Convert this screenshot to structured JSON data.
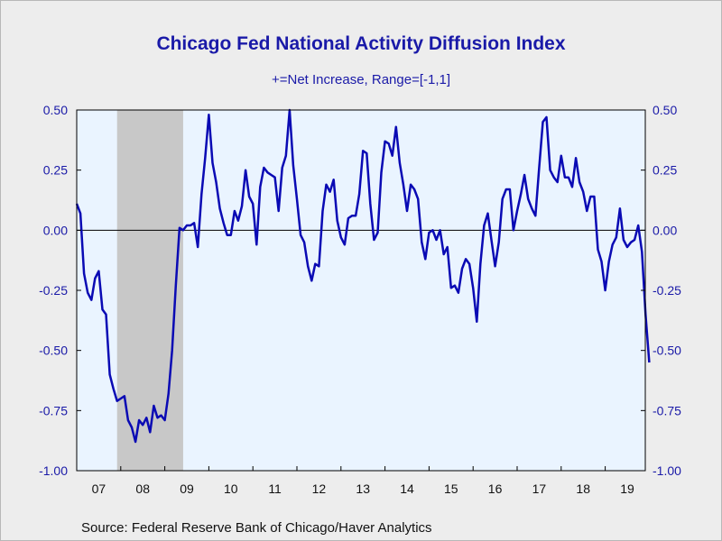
{
  "chart_data": {
    "type": "line",
    "title": "Chicago Fed National Activity Diffusion Index",
    "subtitle": "+=Net Increase, Range=[-1,1]",
    "source": "Source:  Federal Reserve Bank of Chicago/Haver Analytics",
    "ylim": [
      -1.0,
      0.5
    ],
    "y_ticks": [
      "0.50",
      "0.25",
      "0.00",
      "-0.25",
      "-0.50",
      "-0.75",
      "-1.00"
    ],
    "x_ticks": [
      "07",
      "08",
      "09",
      "10",
      "11",
      "12",
      "13",
      "14",
      "15",
      "16",
      "17",
      "18",
      "19"
    ],
    "x_start": "2007-01",
    "grid": false,
    "legend": "none",
    "zero_line": true,
    "recession_shading": {
      "start": "2007-12",
      "end": "2009-06"
    },
    "colors": {
      "line": "#0a0ab4",
      "plot_background": "#eaf4ff",
      "recession": "#c8c8c8",
      "text": "#1a1aa8"
    },
    "series": [
      {
        "values": [
          0.11,
          0.07,
          -0.18,
          -0.26,
          -0.29,
          -0.2,
          -0.17,
          -0.33,
          -0.35,
          -0.6,
          -0.66,
          -0.71,
          -0.7,
          -0.69,
          -0.79,
          -0.82,
          -0.88,
          -0.79,
          -0.81,
          -0.78,
          -0.84,
          -0.73,
          -0.78,
          -0.77,
          -0.79,
          -0.68,
          -0.5,
          -0.23,
          0.01,
          0.0,
          0.02,
          0.02,
          0.03,
          -0.07,
          0.15,
          0.3,
          0.48,
          0.28,
          0.2,
          0.09,
          0.03,
          -0.02,
          -0.02,
          0.08,
          0.04,
          0.1,
          0.25,
          0.14,
          0.11,
          -0.06,
          0.18,
          0.26,
          0.24,
          0.23,
          0.22,
          0.08,
          0.26,
          0.31,
          0.5,
          0.27,
          0.13,
          -0.02,
          -0.05,
          -0.15,
          -0.21,
          -0.14,
          -0.15,
          0.08,
          0.19,
          0.16,
          0.21,
          0.04,
          -0.03,
          -0.06,
          0.05,
          0.06,
          0.06,
          0.15,
          0.33,
          0.32,
          0.11,
          -0.04,
          -0.01,
          0.24,
          0.37,
          0.36,
          0.31,
          0.43,
          0.28,
          0.19,
          0.08,
          0.19,
          0.17,
          0.13,
          -0.05,
          -0.12,
          -0.01,
          0.0,
          -0.04,
          0.0,
          -0.1,
          -0.07,
          -0.24,
          -0.23,
          -0.26,
          -0.16,
          -0.12,
          -0.14,
          -0.24,
          -0.38,
          -0.14,
          0.02,
          0.07,
          -0.04,
          -0.15,
          -0.05,
          0.13,
          0.17,
          0.17,
          0.0,
          0.08,
          0.15,
          0.23,
          0.13,
          0.09,
          0.06,
          0.26,
          0.45,
          0.47,
          0.25,
          0.22,
          0.2,
          0.31,
          0.22,
          0.22,
          0.18,
          0.3,
          0.2,
          0.16,
          0.08,
          0.14,
          0.14,
          -0.08,
          -0.13,
          -0.25,
          -0.13,
          -0.06,
          -0.03,
          0.09,
          -0.04,
          -0.07,
          -0.05,
          -0.04,
          0.02,
          -0.09,
          -0.35,
          -0.55
        ]
      }
    ]
  }
}
